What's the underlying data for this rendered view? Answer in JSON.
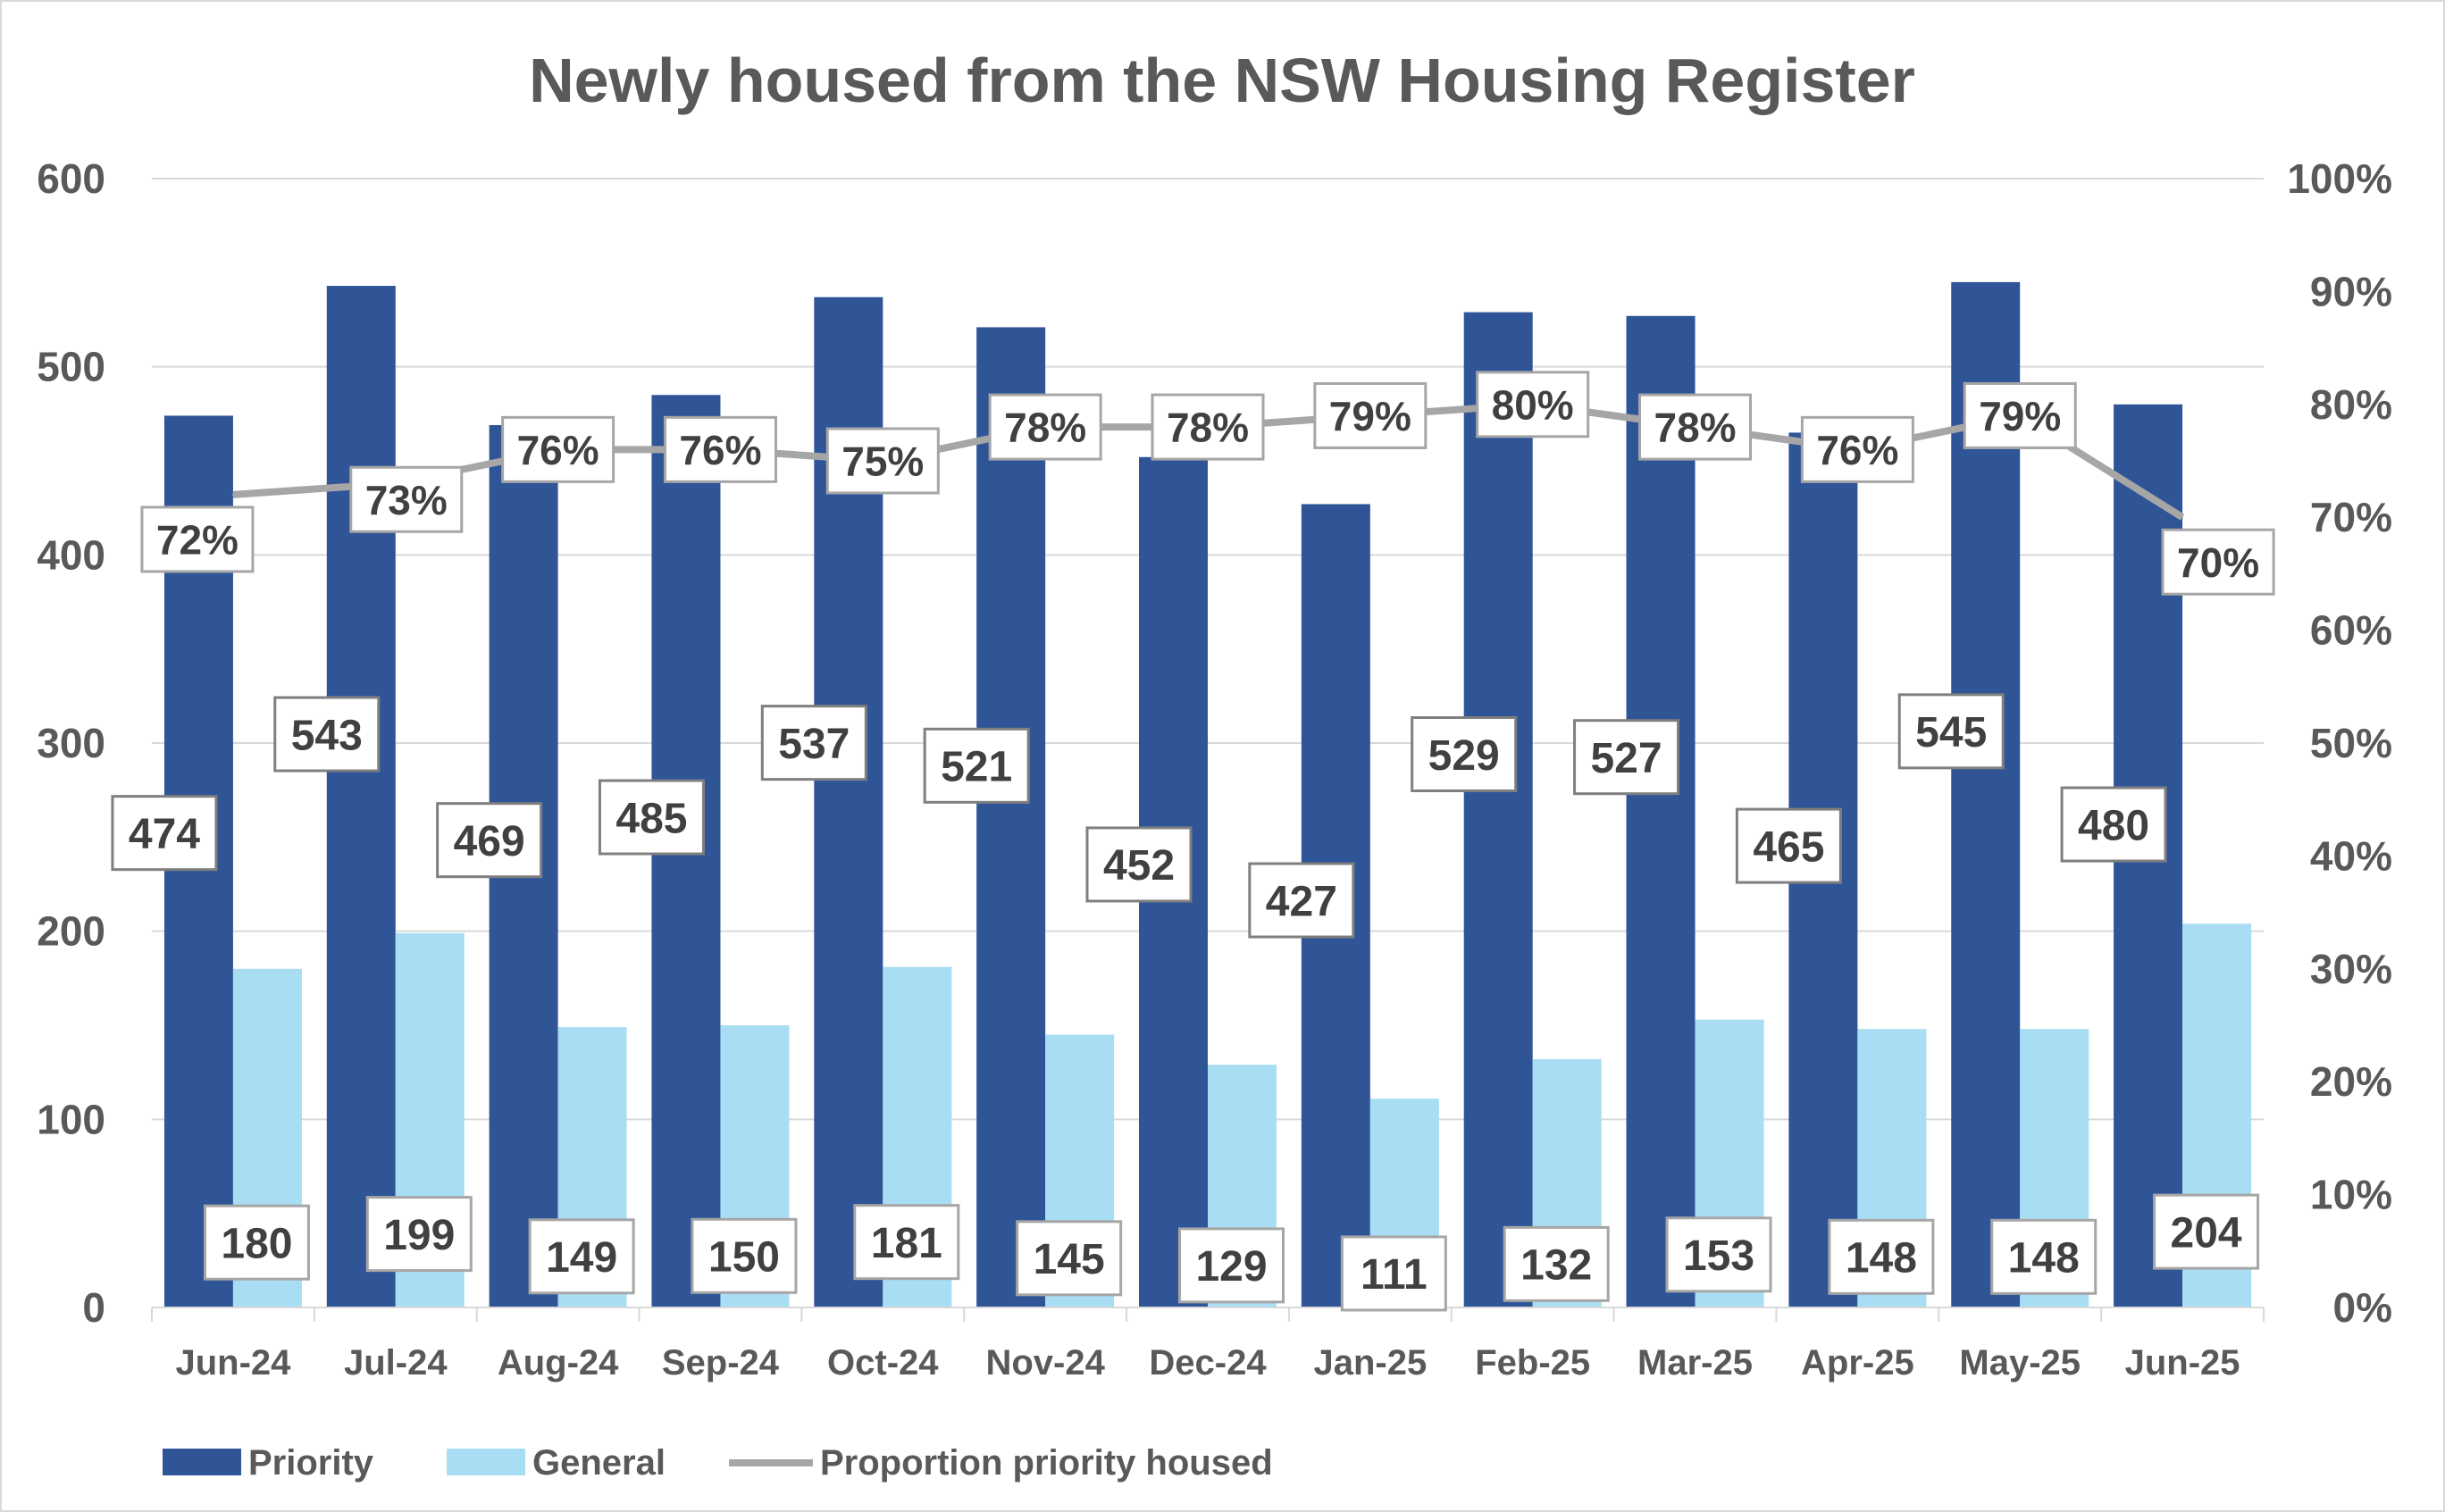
{
  "chart_data": {
    "type": "bar",
    "title": "Newly housed from the NSW Housing Register",
    "categories": [
      "Jun-24",
      "Jul-24",
      "Aug-24",
      "Sep-24",
      "Oct-24",
      "Nov-24",
      "Dec-24",
      "Jan-25",
      "Feb-25",
      "Mar-25",
      "Apr-25",
      "May-25",
      "Jun-25"
    ],
    "series": [
      {
        "name": "Priority",
        "type": "bar",
        "axis": "left",
        "color": "#2f5597",
        "values": [
          474,
          543,
          469,
          485,
          537,
          521,
          452,
          427,
          529,
          527,
          465,
          545,
          480
        ]
      },
      {
        "name": "General",
        "type": "bar",
        "axis": "left",
        "color": "#a9ddf3",
        "values": [
          180,
          199,
          149,
          150,
          181,
          145,
          129,
          111,
          132,
          153,
          148,
          148,
          204
        ]
      },
      {
        "name": "Proportion priority housed",
        "type": "line",
        "axis": "right",
        "color": "#a6a6a6",
        "values": [
          72,
          73,
          76,
          76,
          75,
          78,
          78,
          79,
          80,
          78,
          76,
          79,
          70
        ],
        "labels": [
          "72%",
          "73%",
          "76%",
          "76%",
          "75%",
          "78%",
          "78%",
          "79%",
          "80%",
          "78%",
          "76%",
          "79%",
          "70%"
        ]
      }
    ],
    "y_left": {
      "ylim": [
        0,
        600
      ],
      "ticks": [
        "0",
        "100",
        "200",
        "300",
        "400",
        "500",
        "600"
      ]
    },
    "y_right": {
      "ylim": [
        0,
        100
      ],
      "ticks": [
        "0%",
        "10%",
        "20%",
        "30%",
        "40%",
        "50%",
        "60%",
        "70%",
        "80%",
        "90%",
        "100%"
      ]
    },
    "grid": true,
    "legend_placement": "bottom-left",
    "colors": {
      "title": "#595959",
      "axis_text": "#595959",
      "label_text": "#404040",
      "grid": "#d9d9d9"
    }
  }
}
